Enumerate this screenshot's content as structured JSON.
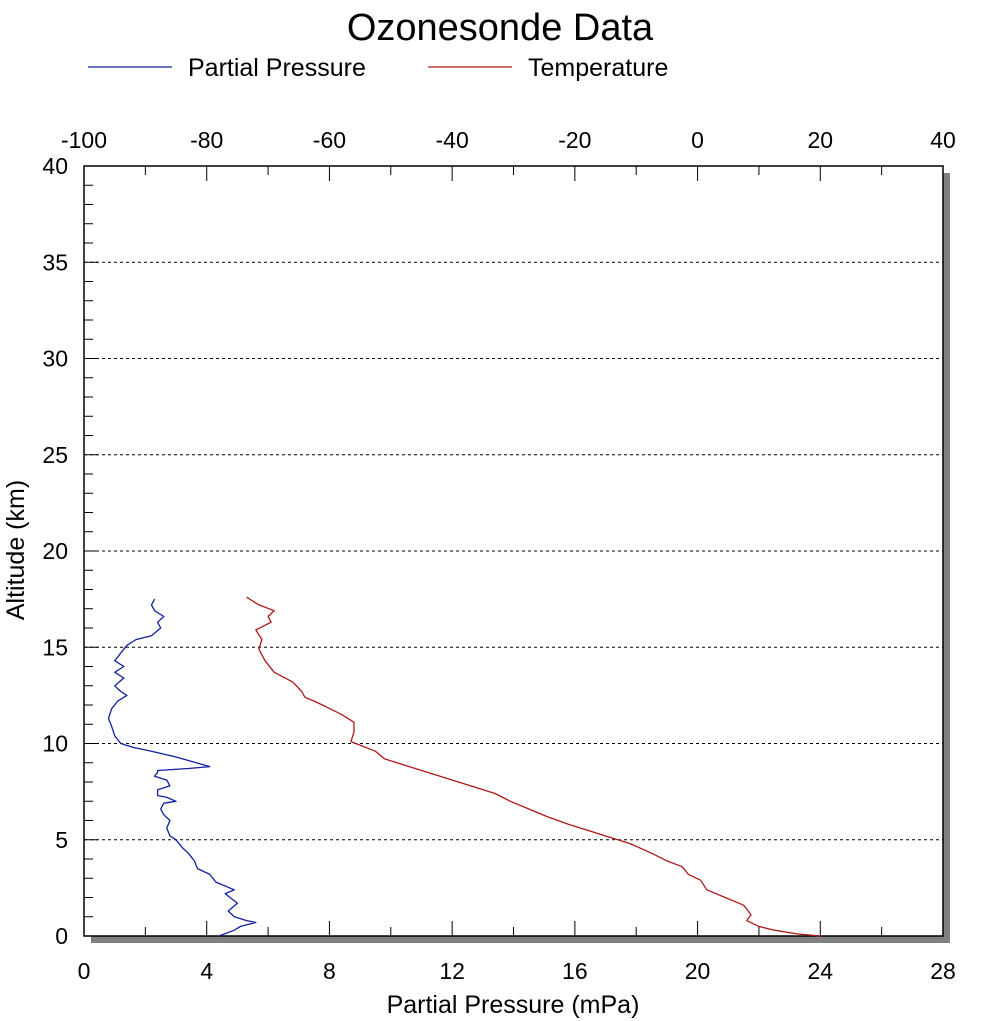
{
  "chart_data": {
    "type": "line",
    "title": "Ozonesonde Data",
    "xlabel": "Partial Pressure (mPa)",
    "ylabel": "Altitude (km)",
    "xlim": [
      0,
      28
    ],
    "x_top_lim": [
      -100,
      40
    ],
    "ylim": [
      0,
      40
    ],
    "x_ticks": [
      "0",
      "4",
      "8",
      "12",
      "16",
      "20",
      "24",
      "28"
    ],
    "x_top_ticks": [
      "-100",
      "-80",
      "-60",
      "-40",
      "-20",
      "0",
      "20",
      "40"
    ],
    "y_ticks": [
      "0",
      "5",
      "10",
      "15",
      "20",
      "25",
      "30",
      "35",
      "40"
    ],
    "grid": "horizontal dotted",
    "legend_position": "top-left",
    "series": [
      {
        "name": "Partial Pressure",
        "color": "#1020a0",
        "axis": "bottom",
        "x": [
          4.4,
          4.9,
          5.1,
          5.6,
          5.3,
          4.9,
          4.7,
          5.0,
          4.6,
          4.9,
          4.3,
          4.1,
          3.7,
          3.6,
          3.4,
          3.2,
          3.0,
          2.8,
          2.7,
          2.8,
          2.6,
          2.5,
          2.6,
          3.0,
          2.7,
          2.4,
          2.4,
          2.8,
          2.7,
          2.3,
          2.4,
          2.4,
          3.4,
          4.1,
          3.0,
          2.2,
          1.6,
          1.2,
          1.0,
          0.9,
          0.8,
          0.9,
          1.1,
          1.4,
          1.2,
          1.0,
          1.3,
          1.0,
          1.3,
          1.0,
          1.2,
          1.4,
          1.7,
          2.2,
          2.5,
          2.4,
          2.6,
          2.3,
          2.2,
          2.3
        ],
        "y": [
          0.0,
          0.3,
          0.5,
          0.7,
          0.8,
          1.0,
          1.3,
          1.7,
          2.2,
          2.4,
          2.8,
          3.2,
          3.5,
          3.9,
          4.3,
          4.6,
          5.0,
          5.2,
          5.6,
          6.0,
          6.3,
          6.6,
          6.9,
          7.0,
          7.2,
          7.3,
          7.6,
          7.8,
          8.1,
          8.3,
          8.5,
          8.6,
          8.7,
          8.8,
          9.3,
          9.6,
          9.8,
          10.0,
          10.4,
          10.9,
          11.3,
          11.8,
          12.2,
          12.5,
          12.7,
          13.0,
          13.4,
          13.7,
          14.0,
          14.3,
          14.7,
          15.1,
          15.4,
          15.6,
          16.0,
          16.3,
          16.6,
          16.9,
          17.2,
          17.5
        ]
      },
      {
        "name": "Temperature",
        "color": "#b01818",
        "axis": "top",
        "x": [
          20.0,
          16.5,
          12.5,
          10.0,
          8.0,
          8.7,
          8.0,
          7.5,
          4.5,
          1.5,
          0.5,
          -1.5,
          -2.5,
          -5.0,
          -7.5,
          -11.0,
          -16.0,
          -21.0,
          -24.5,
          -27.5,
          -30.5,
          -33.0,
          -38.0,
          -43.0,
          -47.0,
          -51.0,
          -52.5,
          -56.5,
          -56.0,
          -56.0,
          -58.0,
          -60.5,
          -62.5,
          -64.0,
          -64.5,
          -66.0,
          -69.0,
          -70.5,
          -71.5,
          -71.0,
          -72.0,
          -69.5,
          -70.0,
          -69.0,
          -71.5,
          -73.5
        ],
        "y": [
          0.0,
          0.1,
          0.3,
          0.5,
          0.8,
          1.1,
          1.4,
          1.6,
          2.0,
          2.4,
          2.9,
          3.2,
          3.6,
          3.9,
          4.3,
          4.8,
          5.3,
          5.8,
          6.2,
          6.6,
          7.0,
          7.4,
          7.9,
          8.4,
          8.8,
          9.2,
          9.6,
          10.1,
          10.6,
          11.1,
          11.5,
          11.9,
          12.2,
          12.4,
          12.7,
          13.2,
          13.7,
          14.3,
          14.9,
          15.4,
          15.9,
          16.3,
          16.6,
          16.9,
          17.2,
          17.6
        ]
      }
    ]
  }
}
